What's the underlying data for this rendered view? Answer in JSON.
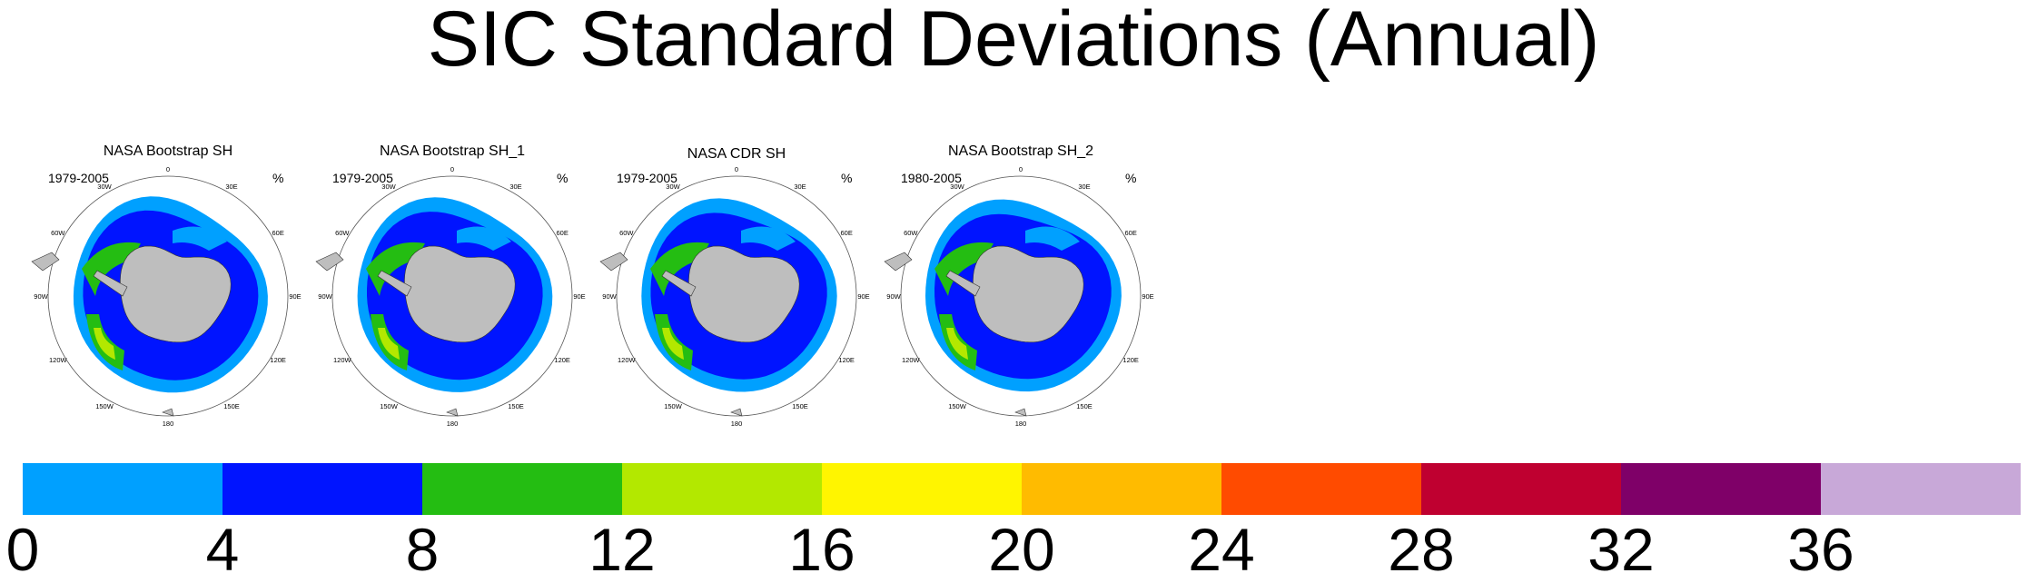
{
  "title": "SIC Standard Deviations (Annual)",
  "panels": [
    {
      "title": "NASA Bootstrap SH",
      "period": "1979-2005",
      "unit": "%"
    },
    {
      "title": "NASA Bootstrap SH_1",
      "period": "1979-2005",
      "unit": "%"
    },
    {
      "title": "NASA CDR SH",
      "period": "1979-2005",
      "unit": "%"
    },
    {
      "title": "NASA Bootstrap SH_2",
      "period": "1980-2005",
      "unit": "%"
    }
  ],
  "longitude_labels": [
    "0",
    "30E",
    "60E",
    "90E",
    "120E",
    "150E",
    "180",
    "150W",
    "120W",
    "90W",
    "60W",
    "30W"
  ],
  "colorbar": {
    "colors": [
      "#00a0ff",
      "#0014ff",
      "#24bd12",
      "#b3e800",
      "#fff500",
      "#ffbb00",
      "#ff4b00",
      "#bf0030",
      "#7f0068",
      "#c8a8d8"
    ],
    "tick_labels": [
      "0",
      "4",
      "8",
      "12",
      "16",
      "20",
      "24",
      "28",
      "32",
      "36"
    ]
  },
  "colors": {
    "land": "#bebebe",
    "ocean": "#ffffff"
  }
}
